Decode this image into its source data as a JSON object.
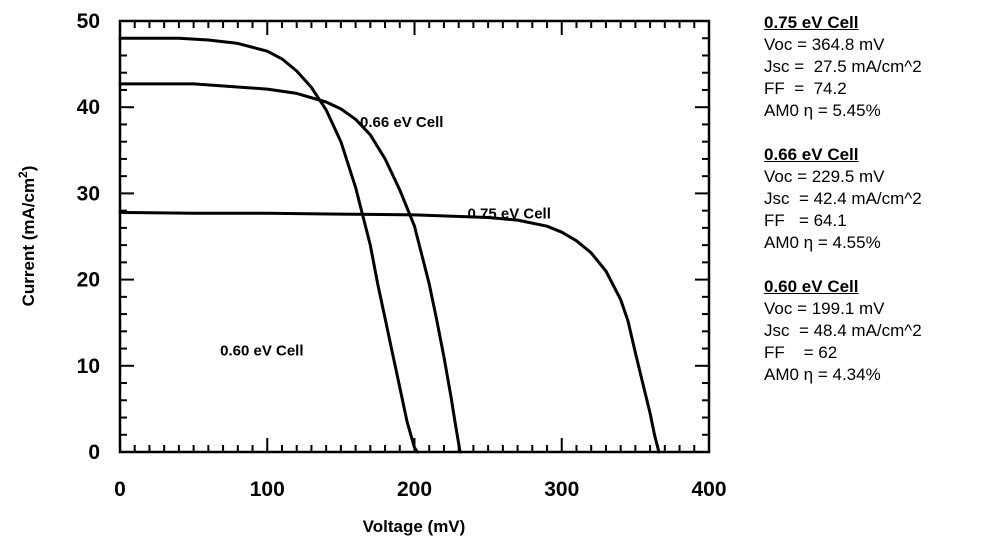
{
  "chart_data": {
    "type": "line",
    "xlabel": "Voltage (mV)",
    "ylabel": "Current (mA/cm",
    "ylabel_sup": "2",
    "ylabel_tail": ")",
    "xlim": [
      0,
      400
    ],
    "ylim": [
      0,
      50
    ],
    "x_ticks": [
      "0",
      "100",
      "200",
      "300",
      "400"
    ],
    "y_ticks": [
      "0",
      "10",
      "20",
      "30",
      "40",
      "50"
    ],
    "grid": false,
    "series": [
      {
        "name": "0.60 eV Cell",
        "x": [
          0,
          40,
          60,
          80,
          100,
          110,
          120,
          130,
          140,
          150,
          160,
          170,
          175,
          180,
          185,
          190,
          195,
          200,
          202
        ],
        "y": [
          48.0,
          48.0,
          47.8,
          47.4,
          46.5,
          45.6,
          44.2,
          42.3,
          39.7,
          36.0,
          30.7,
          24.0,
          19.5,
          15.5,
          11.5,
          7.5,
          3.5,
          0.5,
          0
        ]
      },
      {
        "name": "0.66 eV Cell",
        "x": [
          0,
          50,
          100,
          120,
          140,
          150,
          160,
          170,
          180,
          190,
          200,
          210,
          215,
          220,
          225,
          228,
          231
        ],
        "y": [
          42.7,
          42.7,
          42.1,
          41.6,
          40.6,
          39.8,
          38.6,
          36.8,
          34.0,
          30.4,
          26.2,
          19.5,
          15.4,
          11.0,
          6.2,
          3.0,
          0
        ]
      },
      {
        "name": "0.75 eV Cell",
        "x": [
          0,
          50,
          100,
          150,
          200,
          250,
          270,
          290,
          300,
          310,
          320,
          330,
          340,
          345,
          350,
          355,
          360,
          363,
          366
        ],
        "y": [
          27.8,
          27.7,
          27.7,
          27.6,
          27.5,
          27.2,
          26.9,
          26.2,
          25.5,
          24.5,
          23.1,
          21.0,
          17.7,
          15.2,
          11.5,
          8.0,
          4.5,
          2.0,
          0
        ]
      }
    ],
    "annotations": [
      {
        "text": "0.66 eV Cell",
        "x": 163,
        "y": 37.7
      },
      {
        "text": "0.75 eV Cell",
        "x": 236,
        "y": 27.1
      },
      {
        "text": "0.60 eV Cell",
        "x": 68,
        "y": 11.2
      }
    ]
  },
  "stats": [
    {
      "title": "0.75 eV Cell",
      "lines": [
        "Voc = 364.8 mV",
        "Jsc =  27.5 mA/cm^2",
        "FF  =  74.2",
        "AM0 η = 5.45%"
      ]
    },
    {
      "title": "0.66 eV Cell",
      "lines": [
        "Voc = 229.5 mV",
        "Jsc  = 42.4 mA/cm^2",
        "FF   = 64.1",
        "AM0 η = 4.55%"
      ]
    },
    {
      "title": "0.60 eV Cell",
      "lines": [
        "Voc = 199.1 mV",
        "Jsc  = 48.4 mA/cm^2",
        "FF    = 62",
        "AM0 η = 4.34%"
      ]
    }
  ]
}
